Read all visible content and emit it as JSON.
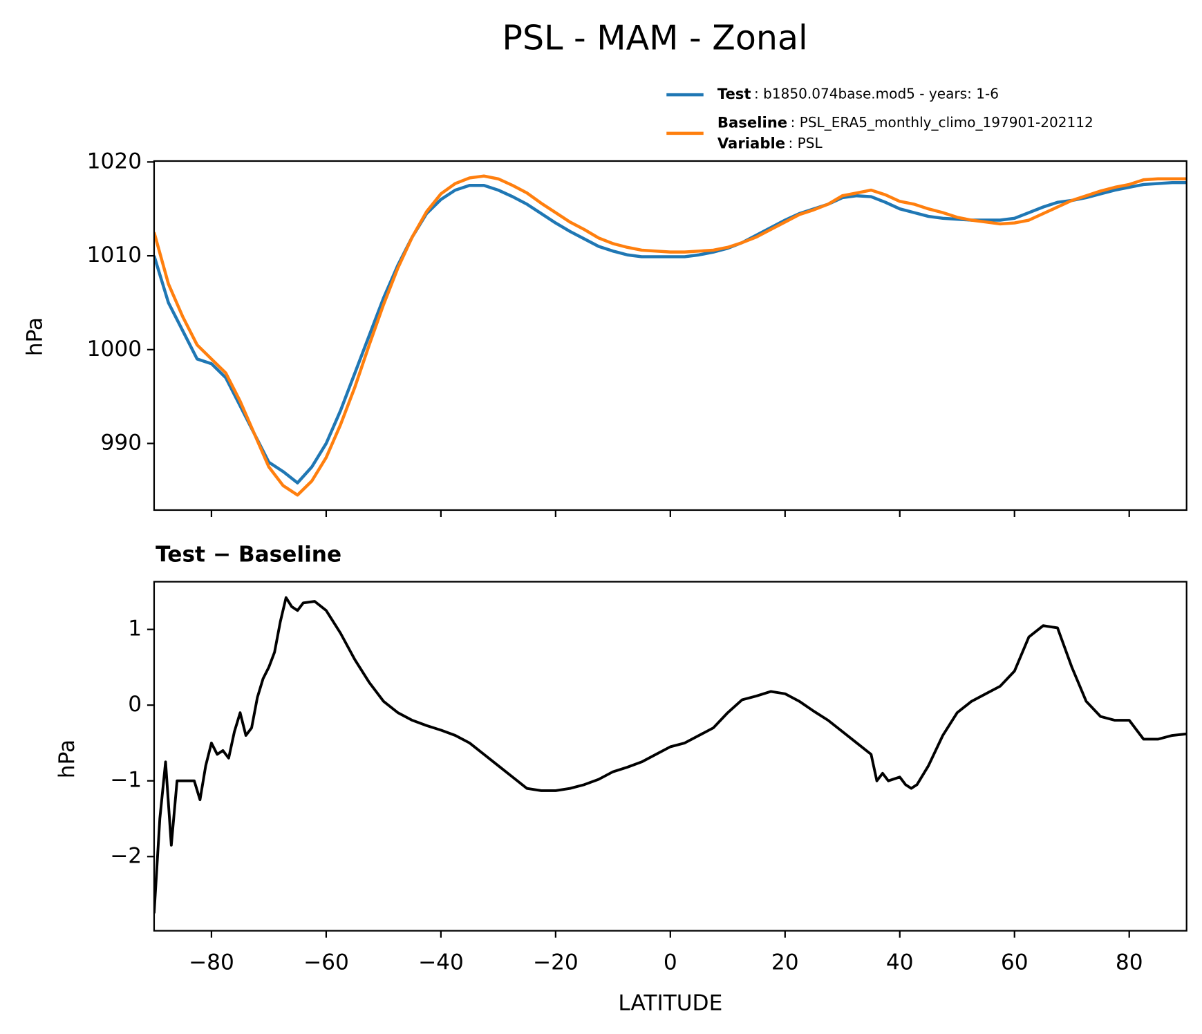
{
  "chart_data": [
    {
      "type": "line",
      "title": "PSL - MAM - Zonal",
      "ylabel": "hPa",
      "x": [
        -90,
        -87.5,
        -85,
        -82.5,
        -80,
        -77.5,
        -75,
        -72.5,
        -70,
        -67.5,
        -65,
        -62.5,
        -60,
        -57.5,
        -55,
        -52.5,
        -50,
        -47.5,
        -45,
        -42.5,
        -40,
        -37.5,
        -35,
        -32.5,
        -30,
        -27.5,
        -25,
        -22.5,
        -20,
        -17.5,
        -15,
        -12.5,
        -10,
        -7.5,
        -5,
        -2.5,
        0,
        2.5,
        5,
        7.5,
        10,
        12.5,
        15,
        17.5,
        20,
        22.5,
        25,
        27.5,
        30,
        32.5,
        35,
        37.5,
        40,
        42.5,
        45,
        47.5,
        50,
        52.5,
        55,
        57.5,
        60,
        62.5,
        65,
        67.5,
        70,
        72.5,
        75,
        77.5,
        80,
        82.5,
        85,
        87.5,
        90
      ],
      "series": [
        {
          "name": "Test",
          "legend_detail": ": b1850.074base.mod5 - years: 1-6",
          "color": "#1f77b4",
          "values": [
            1010,
            1005,
            1002,
            999,
            998.5,
            997,
            994,
            991,
            988,
            987,
            985.8,
            987.5,
            990,
            993.5,
            997.5,
            1001.5,
            1005.5,
            1009,
            1012,
            1014.5,
            1016,
            1017,
            1017.5,
            1017.5,
            1017,
            1016.3,
            1015.5,
            1014.5,
            1013.5,
            1012.6,
            1011.8,
            1011,
            1010.5,
            1010.1,
            1009.9,
            1009.9,
            1009.9,
            1009.9,
            1010.1,
            1010.4,
            1010.8,
            1011.4,
            1012.2,
            1013,
            1013.8,
            1014.5,
            1015,
            1015.5,
            1016.2,
            1016.4,
            1016.3,
            1015.7,
            1015,
            1014.6,
            1014.2,
            1014,
            1013.9,
            1013.8,
            1013.8,
            1013.8,
            1014,
            1014.6,
            1015.2,
            1015.7,
            1015.9,
            1016.2,
            1016.6,
            1017,
            1017.3,
            1017.6,
            1017.7,
            1017.8,
            1017.8
          ]
        },
        {
          "name": "Baseline",
          "legend_detail": ": PSL_ERA5_monthly_climo_197901-202112",
          "color": "#ff7f0e",
          "values": [
            1012.5,
            1007,
            1003.5,
            1000.5,
            999,
            997.5,
            994.5,
            991,
            987.5,
            985.5,
            984.5,
            986,
            988.5,
            992,
            996,
            1000.5,
            1004.8,
            1008.7,
            1012,
            1014.7,
            1016.6,
            1017.7,
            1018.3,
            1018.5,
            1018.2,
            1017.5,
            1016.7,
            1015.6,
            1014.6,
            1013.6,
            1012.8,
            1011.9,
            1011.3,
            1010.9,
            1010.6,
            1010.5,
            1010.4,
            1010.4,
            1010.5,
            1010.6,
            1010.9,
            1011.4,
            1012,
            1012.8,
            1013.6,
            1014.4,
            1014.9,
            1015.5,
            1016.4,
            1016.7,
            1017,
            1016.5,
            1015.8,
            1015.5,
            1015,
            1014.6,
            1014.1,
            1013.8,
            1013.6,
            1013.4,
            1013.5,
            1013.8,
            1014.5,
            1015.2,
            1015.9,
            1016.4,
            1016.9,
            1017.3,
            1017.6,
            1018.1,
            1018.2,
            1018.2,
            1018.2
          ]
        }
      ],
      "legend_variable_name": "Variable",
      "legend_variable_detail": ": PSL",
      "xlim": [
        -90,
        90
      ],
      "xticks": [
        -80,
        -60,
        -40,
        -20,
        0,
        20,
        40,
        60,
        80
      ],
      "ylim": [
        982.9,
        1020.1
      ],
      "yticks": [
        990,
        1000,
        1010,
        1020
      ]
    },
    {
      "type": "line",
      "subtitle": "Test − Baseline",
      "ylabel": "hPa",
      "xlabel": "LATITUDE",
      "x": [
        -90,
        -89,
        -88,
        -87,
        -86,
        -85,
        -84,
        -83,
        -82,
        -81,
        -80,
        -79,
        -78,
        -77,
        -76,
        -75,
        -74,
        -73,
        -72,
        -71,
        -70,
        -69,
        -68,
        -67,
        -66,
        -65,
        -64,
        -62,
        -60,
        -57.5,
        -55,
        -52.5,
        -50,
        -47.5,
        -45,
        -42.5,
        -40,
        -37.5,
        -35,
        -32.5,
        -30,
        -27.5,
        -25,
        -22.5,
        -20,
        -17.5,
        -15,
        -12.5,
        -10,
        -7.5,
        -5,
        -2.5,
        0,
        2.5,
        5,
        7.5,
        10,
        12.5,
        15,
        17.5,
        20,
        22.5,
        25,
        27.5,
        30,
        32.5,
        35,
        36,
        37,
        38,
        40,
        41,
        42,
        43,
        45,
        47.5,
        50,
        52.5,
        55,
        57.5,
        60,
        62.5,
        65,
        67.5,
        70,
        72.5,
        75,
        77.5,
        80,
        82.5,
        85,
        87.5,
        90
      ],
      "series": [
        {
          "name": "Test − Baseline",
          "color": "#000000",
          "values": [
            -2.75,
            -1.5,
            -0.75,
            -1.85,
            -1.0,
            -1.0,
            -1.0,
            -1.0,
            -1.25,
            -0.8,
            -0.5,
            -0.65,
            -0.6,
            -0.7,
            -0.35,
            -0.1,
            -0.4,
            -0.3,
            0.1,
            0.35,
            0.5,
            0.7,
            1.1,
            1.42,
            1.3,
            1.25,
            1.35,
            1.37,
            1.25,
            0.95,
            0.6,
            0.3,
            0.05,
            -0.1,
            -0.2,
            -0.27,
            -0.33,
            -0.4,
            -0.5,
            -0.65,
            -0.8,
            -0.95,
            -1.1,
            -1.13,
            -1.13,
            -1.1,
            -1.05,
            -0.98,
            -0.88,
            -0.82,
            -0.75,
            -0.65,
            -0.55,
            -0.5,
            -0.4,
            -0.3,
            -0.1,
            0.07,
            0.12,
            0.18,
            0.15,
            0.05,
            -0.08,
            -0.2,
            -0.35,
            -0.5,
            -0.65,
            -1.0,
            -0.9,
            -1.0,
            -0.95,
            -1.05,
            -1.1,
            -1.05,
            -0.8,
            -0.4,
            -0.1,
            0.05,
            0.15,
            0.25,
            0.45,
            0.9,
            1.05,
            1.02,
            0.5,
            0.05,
            -0.15,
            -0.2,
            -0.2,
            -0.45,
            -0.45,
            -0.4,
            -0.38
          ]
        }
      ],
      "xlim": [
        -90,
        90
      ],
      "xticks": [
        {
          "value": -80,
          "label": "−80"
        },
        {
          "value": -60,
          "label": "−60"
        },
        {
          "value": -40,
          "label": "−40"
        },
        {
          "value": -20,
          "label": "−20"
        },
        0,
        20,
        40,
        60,
        80
      ],
      "ylim": [
        -2.98,
        1.63
      ],
      "yticks": [
        {
          "value": -2,
          "label": "−2"
        },
        {
          "value": -1,
          "label": "−1"
        },
        0,
        1
      ]
    }
  ]
}
